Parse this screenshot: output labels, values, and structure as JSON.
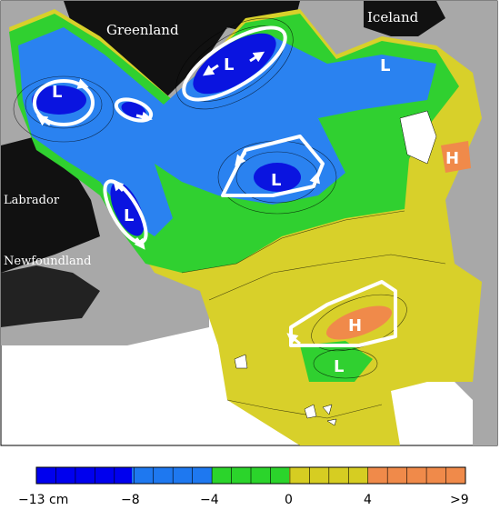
{
  "map": {
    "land_labels": {
      "greenland": "Greenland",
      "iceland": "Iceland",
      "labrador": "Labrador",
      "newfoundland": "Newfoundland"
    },
    "features": [
      {
        "id": "low-greenland-sea",
        "label": "L",
        "type": "low"
      },
      {
        "id": "low-labrador-west",
        "label": "L",
        "type": "low"
      },
      {
        "id": "low-labrador-coast",
        "label": "L",
        "type": "low"
      },
      {
        "id": "low-iceland-basin",
        "label": "L",
        "type": "low"
      },
      {
        "id": "low-central",
        "label": "L",
        "type": "low"
      },
      {
        "id": "low-south",
        "label": "L",
        "type": "low"
      },
      {
        "id": "high-south",
        "label": "H",
        "type": "high"
      },
      {
        "id": "high-east",
        "label": "H",
        "type": "high"
      }
    ]
  },
  "colorbar": {
    "tick_labels": [
      "−13 cm",
      "−8",
      "−4",
      "0",
      "4",
      ">9"
    ],
    "colors": [
      "#0000ee",
      "#1e78f0",
      "#2bd42b",
      "#d6cd22",
      "#f08a4a"
    ]
  },
  "colors": {
    "land": "#111111",
    "ocean_gray": "#a8a8a8",
    "deep_blue": "#0a14e0",
    "mid_blue": "#2a82f0",
    "green": "#30d030",
    "yellow": "#d8d02a",
    "orange": "#f08a4a"
  }
}
